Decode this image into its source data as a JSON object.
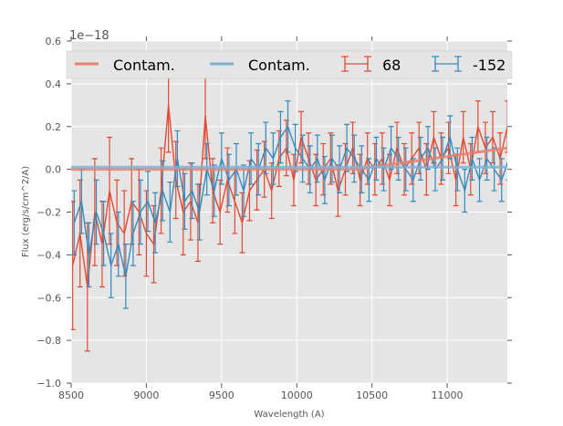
{
  "chart_data": {
    "type": "line",
    "title": "",
    "xlabel": "Wavelength (A)",
    "ylabel": "Flux (erg/s/cm^2/A)",
    "y_offset_label": "1e−18",
    "xlim": [
      8500,
      11400
    ],
    "ylim": [
      -1.0,
      0.6
    ],
    "xticks": [
      8500,
      9000,
      9500,
      10000,
      10500,
      11000
    ],
    "yticks": [
      0.6,
      0.4,
      0.2,
      0.0,
      -0.2,
      -0.4,
      -0.6,
      -0.8,
      -1.0
    ],
    "ytick_labels": [
      "0.6",
      "0.4",
      "0.2",
      "0.0",
      "−0.2",
      "−0.4",
      "−0.6",
      "−0.8",
      "−1.0"
    ],
    "grid": true,
    "legend_position": "top",
    "series": [
      {
        "name": "Contam.",
        "kind": "line",
        "color": "#E8806F",
        "x": [
          8500,
          10400,
          11400
        ],
        "y": [
          0.0,
          0.0,
          0.1
        ]
      },
      {
        "name": "Contam.",
        "kind": "line",
        "color": "#7FB1D6",
        "x": [
          8500,
          11400
        ],
        "y": [
          0.01,
          0.01
        ]
      },
      {
        "name": "68",
        "kind": "errorbar",
        "color": "#E24A33",
        "x_start": 8510,
        "x_step": 49,
        "y": [
          -0.45,
          -0.3,
          -0.55,
          -0.2,
          -0.35,
          -0.1,
          -0.25,
          -0.3,
          -0.15,
          -0.2,
          -0.3,
          -0.35,
          -0.1,
          0.3,
          -0.05,
          -0.2,
          -0.15,
          -0.25,
          0.25,
          -0.1,
          -0.2,
          -0.05,
          -0.15,
          -0.25,
          -0.1,
          -0.05,
          0.0,
          -0.1,
          0.05,
          0.1,
          -0.05,
          0.15,
          0.05,
          -0.05,
          0.0,
          0.05,
          -0.1,
          0.0,
          0.1,
          -0.05,
          0.05,
          0.0,
          0.05,
          -0.05,
          0.1,
          0.0,
          0.05,
          0.1,
          0.0,
          0.15,
          0.05,
          0.1,
          -0.05,
          0.15,
          0.0,
          0.2,
          0.1,
          0.15,
          0.05,
          0.2
        ],
        "err": [
          0.3,
          0.25,
          0.3,
          0.25,
          0.2,
          0.25,
          0.2,
          0.2,
          0.2,
          0.2,
          0.2,
          0.18,
          0.2,
          0.22,
          0.18,
          0.2,
          0.18,
          0.18,
          0.2,
          0.15,
          0.15,
          0.15,
          0.15,
          0.14,
          0.14,
          0.14,
          0.13,
          0.13,
          0.13,
          0.13,
          0.12,
          0.12,
          0.12,
          0.12,
          0.12,
          0.12,
          0.12,
          0.12,
          0.12,
          0.12,
          0.12,
          0.12,
          0.12,
          0.12,
          0.12,
          0.12,
          0.12,
          0.12,
          0.12,
          0.12,
          0.12,
          0.12,
          0.12,
          0.12,
          0.12,
          0.12,
          0.12,
          0.12,
          0.12,
          0.12
        ]
      },
      {
        "name": "-152",
        "kind": "errorbar",
        "color": "#348ABD",
        "x_start": 8520,
        "x_step": 49,
        "y": [
          -0.25,
          -0.15,
          -0.4,
          -0.2,
          -0.3,
          -0.45,
          -0.35,
          -0.5,
          -0.3,
          -0.2,
          -0.15,
          -0.25,
          -0.1,
          -0.2,
          0.05,
          -0.15,
          -0.1,
          -0.2,
          0.0,
          -0.1,
          0.05,
          -0.05,
          0.0,
          -0.1,
          0.05,
          0.0,
          0.1,
          0.05,
          0.15,
          0.2,
          0.1,
          0.05,
          0.0,
          0.05,
          -0.05,
          0.05,
          0.0,
          0.1,
          0.05,
          0.0,
          -0.05,
          0.05,
          0.0,
          0.1,
          0.05,
          0.0,
          -0.05,
          0.05,
          0.1,
          0.0,
          0.05,
          0.15,
          0.0,
          -0.1,
          0.05,
          -0.05,
          0.05,
          0.0,
          -0.05,
          0.05
        ],
        "err": [
          0.15,
          0.15,
          0.15,
          0.15,
          0.15,
          0.15,
          0.15,
          0.15,
          0.15,
          0.15,
          0.14,
          0.14,
          0.14,
          0.14,
          0.13,
          0.13,
          0.13,
          0.13,
          0.12,
          0.12,
          0.12,
          0.12,
          0.12,
          0.12,
          0.12,
          0.12,
          0.12,
          0.12,
          0.12,
          0.12,
          0.11,
          0.11,
          0.11,
          0.11,
          0.11,
          0.11,
          0.11,
          0.11,
          0.11,
          0.11,
          0.1,
          0.1,
          0.1,
          0.1,
          0.1,
          0.1,
          0.1,
          0.1,
          0.1,
          0.1,
          0.1,
          0.1,
          0.1,
          0.1,
          0.1,
          0.1,
          0.1,
          0.1,
          0.1,
          0.1
        ]
      }
    ]
  }
}
